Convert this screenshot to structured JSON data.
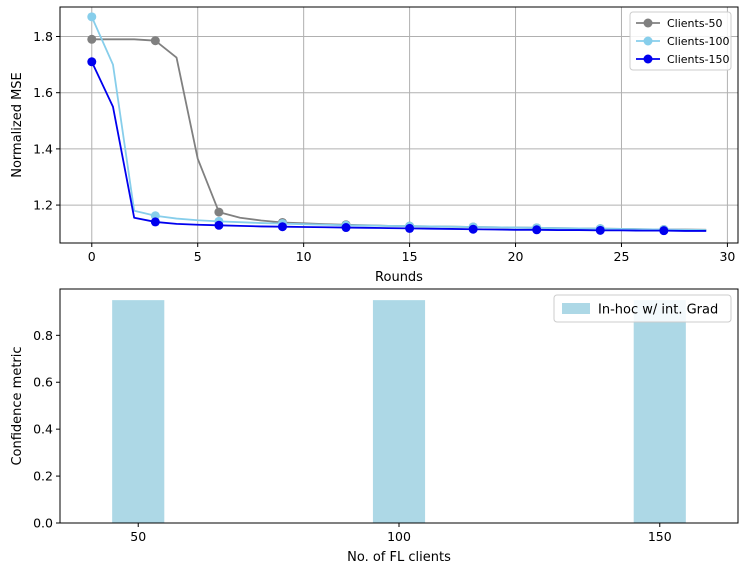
{
  "chart_data": [
    {
      "type": "line",
      "xlabel": "Rounds",
      "ylabel": "Normalized MSE",
      "xlim": [
        -1.5,
        30.5
      ],
      "ylim": [
        1.065,
        1.905
      ],
      "xticks": [
        0,
        5,
        10,
        15,
        20,
        25,
        30
      ],
      "yticks": [
        1.2,
        1.4,
        1.6,
        1.8
      ],
      "ytick_labels": [
        "1.2",
        "1.4",
        "1.6",
        "1.8"
      ],
      "grid": true,
      "legend_position": "top-right",
      "marker_every": 3,
      "series": [
        {
          "name": "Clients-50",
          "color": "#808080",
          "marker": "circle",
          "x": [
            0,
            1,
            2,
            3,
            4,
            5,
            6,
            7,
            8,
            9,
            10,
            11,
            12,
            13,
            14,
            15,
            16,
            17,
            18,
            19,
            20,
            21,
            22,
            23,
            24,
            25,
            26,
            27,
            28,
            29
          ],
          "y": [
            1.79,
            1.79,
            1.79,
            1.785,
            1.725,
            1.365,
            1.175,
            1.155,
            1.145,
            1.138,
            1.135,
            1.132,
            1.13,
            1.128,
            1.126,
            1.125,
            1.124,
            1.123,
            1.122,
            1.121,
            1.12,
            1.119,
            1.118,
            1.117,
            1.116,
            1.115,
            1.114,
            1.113,
            1.113,
            1.112
          ]
        },
        {
          "name": "Clients-100",
          "color": "#87CEEB",
          "marker": "circle",
          "x": [
            0,
            1,
            2,
            3,
            4,
            5,
            6,
            7,
            8,
            9,
            10,
            11,
            12,
            13,
            14,
            15,
            16,
            17,
            18,
            19,
            20,
            21,
            22,
            23,
            24,
            25,
            26,
            27,
            28,
            29
          ],
          "y": [
            1.87,
            1.7,
            1.18,
            1.162,
            1.152,
            1.146,
            1.142,
            1.139,
            1.136,
            1.134,
            1.132,
            1.13,
            1.128,
            1.127,
            1.126,
            1.125,
            1.124,
            1.123,
            1.122,
            1.121,
            1.12,
            1.119,
            1.118,
            1.117,
            1.116,
            1.115,
            1.114,
            1.113,
            1.112,
            1.111
          ]
        },
        {
          "name": "Clients-150",
          "color": "#0000EE",
          "marker": "circle",
          "x": [
            0,
            1,
            2,
            3,
            4,
            5,
            6,
            7,
            8,
            9,
            10,
            11,
            12,
            13,
            14,
            15,
            16,
            17,
            18,
            19,
            20,
            21,
            22,
            23,
            24,
            25,
            26,
            27,
            28,
            29
          ],
          "y": [
            1.71,
            1.55,
            1.155,
            1.14,
            1.133,
            1.13,
            1.128,
            1.126,
            1.124,
            1.123,
            1.122,
            1.121,
            1.12,
            1.119,
            1.118,
            1.117,
            1.116,
            1.115,
            1.114,
            1.113,
            1.112,
            1.112,
            1.111,
            1.111,
            1.11,
            1.11,
            1.109,
            1.109,
            1.108,
            1.108
          ]
        }
      ]
    },
    {
      "type": "bar",
      "xlabel": "No. of FL clients",
      "ylabel": "Confidence metric",
      "categories": [
        "50",
        "100",
        "150"
      ],
      "ylim": [
        0,
        0.9975
      ],
      "yticks": [
        0.0,
        0.2,
        0.4,
        0.6,
        0.8
      ],
      "ytick_labels": [
        "0.0",
        "0.2",
        "0.4",
        "0.6",
        "0.8"
      ],
      "grid": false,
      "legend_position": "top-right",
      "series": [
        {
          "name": "In-hoc w/ int. Grad",
          "color": "#ADD8E6",
          "values": [
            0.95,
            0.95,
            0.95
          ]
        }
      ]
    }
  ]
}
